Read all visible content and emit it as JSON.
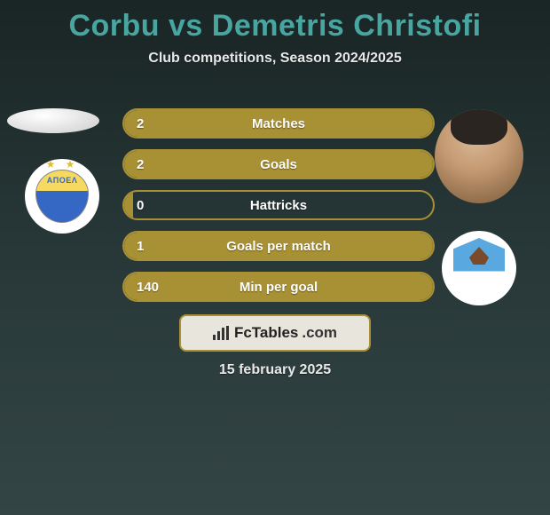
{
  "title": "Corbu vs Demetris Christofi",
  "subtitle": "Club competitions, Season 2024/2025",
  "date": "15 february 2025",
  "brand": {
    "name": "FcTables",
    "ext": ".com"
  },
  "colors": {
    "accent": "#a89035",
    "title": "#48a5a0"
  },
  "stats": [
    {
      "label": "Matches",
      "value": "2",
      "fill_pct": 100
    },
    {
      "label": "Goals",
      "value": "2",
      "fill_pct": 100
    },
    {
      "label": "Hattricks",
      "value": "0",
      "fill_pct": 3
    },
    {
      "label": "Goals per match",
      "value": "1",
      "fill_pct": 100
    },
    {
      "label": "Min per goal",
      "value": "140",
      "fill_pct": 100
    }
  ],
  "players": {
    "left": {
      "name": "Corbu",
      "club_badge_text": "ΑΠΟΕΛ"
    },
    "right": {
      "name": "Demetris Christofi"
    }
  }
}
